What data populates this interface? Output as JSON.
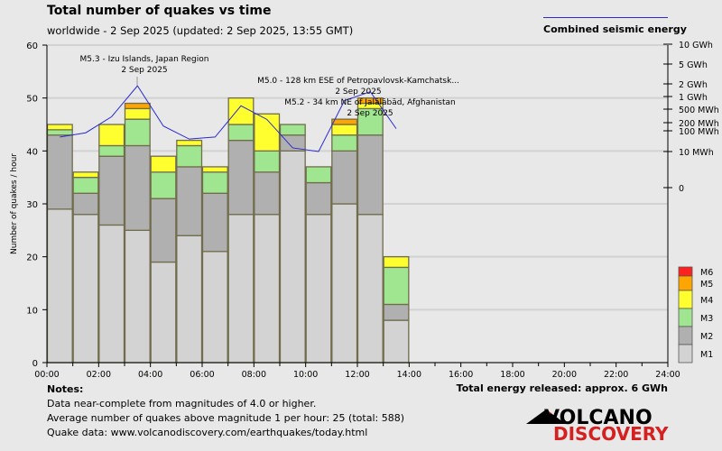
{
  "title": "Total number of quakes vs time",
  "subtitle": "worldwide -  2 Sep 2025 (updated: 2 Sep 2025, 13:55 GMT)",
  "legend_energy": "Combined seismic energy",
  "notes": {
    "heading": "Notes:",
    "lines": [
      "Data near-complete from magnitudes of 4.0 or higher.",
      "Average number of quakes above magnitude 1 per hour: 25 (total: 588)",
      "Quake data: www.volcanodiscovery.com/earthquakes/today.html"
    ]
  },
  "energy_total": "Total energy released: approx. 6 GWh",
  "logo": {
    "text1": "VOLCANO",
    "text2": "DISCOVERY",
    "color1": "#000000",
    "color2": "#d62020"
  },
  "chart_data": {
    "type": "bar",
    "stacked": true,
    "ylabel": "Number of quakes / hour",
    "ylim": [
      0,
      60
    ],
    "yticks": [
      0,
      10,
      20,
      30,
      40,
      50,
      60
    ],
    "xticks": [
      "00:00",
      "02:00",
      "04:00",
      "06:00",
      "08:00",
      "10:00",
      "12:00",
      "14:00",
      "16:00",
      "18:00",
      "20:00",
      "22:00",
      "24:00"
    ],
    "xlim_hours": [
      0,
      24
    ],
    "grid": true,
    "hours": [
      0,
      1,
      2,
      3,
      4,
      5,
      6,
      7,
      8,
      9,
      10,
      11,
      12,
      13
    ],
    "series": [
      {
        "name": "M1",
        "color": "#d3d3d3",
        "values": [
          29,
          28,
          26,
          25,
          19,
          24,
          21,
          28,
          28,
          40,
          28,
          30,
          28,
          8
        ]
      },
      {
        "name": "M2",
        "color": "#b0b0b0",
        "values": [
          14,
          4,
          13,
          16,
          12,
          13,
          11,
          14,
          8,
          3,
          6,
          10,
          15,
          3
        ]
      },
      {
        "name": "M3",
        "color": "#a0e690",
        "values": [
          1,
          3,
          2,
          5,
          5,
          4,
          4,
          3,
          4,
          2,
          3,
          3,
          5,
          7
        ]
      },
      {
        "name": "M4",
        "color": "#ffff30",
        "values": [
          1,
          1,
          4,
          2,
          3,
          1,
          1,
          5,
          7,
          0,
          0,
          2,
          1,
          2
        ]
      },
      {
        "name": "M5",
        "color": "#ffa500",
        "values": [
          0,
          0,
          0,
          1,
          0,
          0,
          0,
          0,
          0,
          0,
          0,
          1,
          1,
          0
        ]
      },
      {
        "name": "M6",
        "color": "#ff2020",
        "values": [
          0,
          0,
          0,
          0,
          0,
          0,
          0,
          0,
          0,
          0,
          0,
          0,
          0,
          0
        ]
      }
    ],
    "energy": {
      "name": "Combined seismic energy",
      "color": "#2a2ad0",
      "unit": "MWh",
      "values": [
        50,
        80,
        300,
        1800,
        150,
        40,
        50,
        600,
        250,
        15,
        8,
        800,
        1300,
        120
      ]
    },
    "energy_axis_ticks": [
      {
        "label": "10 GWh",
        "mwh": 10000
      },
      {
        "label": "5 GWh",
        "mwh": 5000
      },
      {
        "label": "2 GWh",
        "mwh": 2000
      },
      {
        "label": "1 GWh",
        "mwh": 1000
      },
      {
        "label": "500 MWh",
        "mwh": 500
      },
      {
        "label": "200 MWh",
        "mwh": 200
      },
      {
        "label": "100 MWh",
        "mwh": 100
      },
      {
        "label": "10 MWh",
        "mwh": 10
      },
      {
        "label": "0",
        "mwh": 0
      }
    ],
    "annotations": [
      {
        "hour": 3,
        "line1": "M5.3 - Izu Islands, Japan Region",
        "line2": "2 Sep 2025"
      },
      {
        "hour": 12,
        "line1": "M5.0 - 128 km ESE of Petropavlovsk-Kamchatsk...",
        "line2": "2 Sep 2025"
      },
      {
        "hour": 12,
        "line1": "M5.2 - 34 km NE of Jalālābād, Afghanistan",
        "line2": "2 Sep 2025"
      }
    ]
  }
}
